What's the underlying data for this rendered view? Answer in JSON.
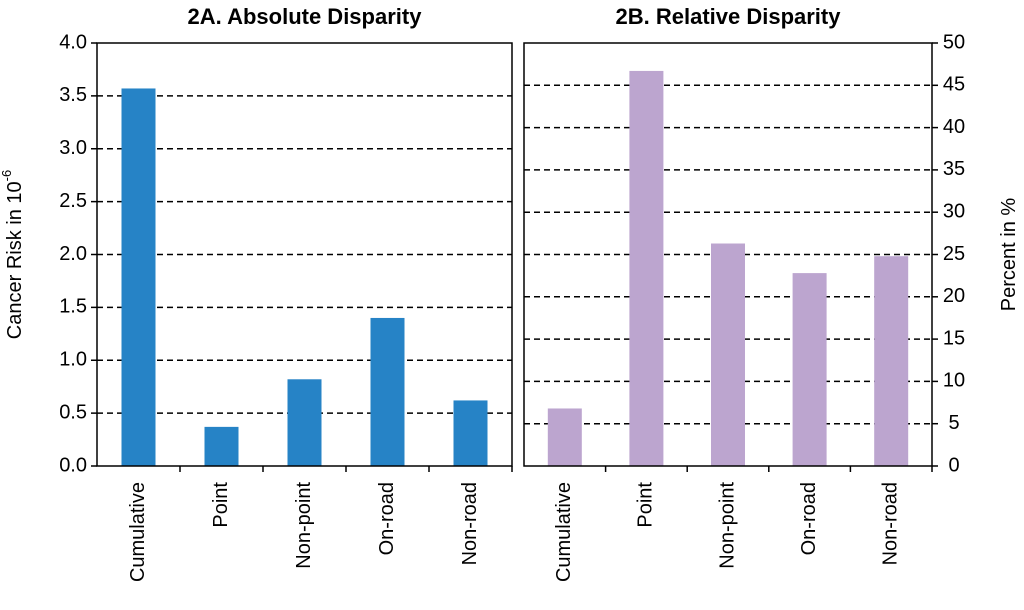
{
  "chart_data": [
    {
      "type": "bar",
      "title": "2A. Absolute Disparity",
      "y_label": "Cancer Risk in 10",
      "y_label_superscript": "-6",
      "categories": [
        "Cumulative",
        "Point",
        "Non-point",
        "On-road",
        "Non-road"
      ],
      "values": [
        3.57,
        0.37,
        0.82,
        1.4,
        0.62
      ],
      "color": "#2683c6",
      "ylim": [
        0,
        4
      ],
      "yticks": [
        {
          "value": 0,
          "label": "0.0"
        },
        0.5,
        {
          "value": 1,
          "label": "1.0"
        },
        1.5,
        {
          "value": 2,
          "label": "2.0"
        },
        2.5,
        {
          "value": 3,
          "label": "3.0"
        },
        3.5,
        {
          "value": 4,
          "label": "4.0"
        }
      ],
      "y_axis_side": "left",
      "grid": true
    },
    {
      "type": "bar",
      "title": "2B. Relative Disparity",
      "y_label": "Percent in %",
      "categories": [
        "Cumulative",
        "Point",
        "Non-point",
        "On-road",
        "Non-road"
      ],
      "values": [
        6.8,
        46.7,
        26.3,
        22.8,
        24.8
      ],
      "color": "#bca5cf",
      "ylim": [
        0,
        50
      ],
      "yticks": [
        0,
        5,
        10,
        15,
        20,
        25,
        30,
        35,
        40,
        45,
        50
      ],
      "y_axis_side": "right",
      "grid": true
    }
  ]
}
